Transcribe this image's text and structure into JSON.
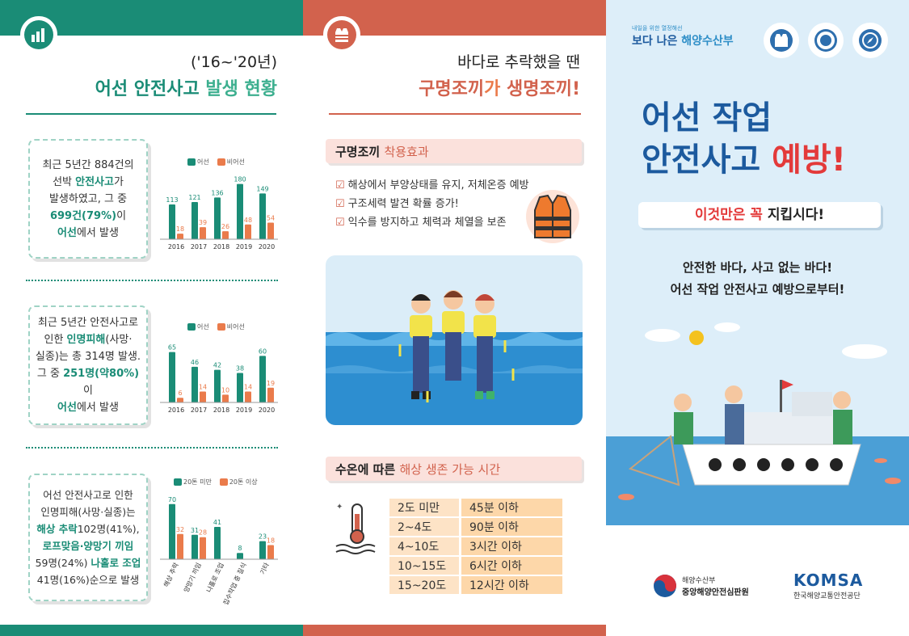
{
  "panel1": {
    "subtitle": "('16~'20년)",
    "title_a": "어선 안전사고 ",
    "title_b": "발생 현황",
    "b1": {
      "l1": "최근 5년간 884건의",
      "l2a": "선박 ",
      "l2b": "안전사고",
      "l2c": "가",
      "l3": "발생하였고, 그 중",
      "l4a": "699건(79%)",
      "l4b": "이",
      "l5a": "어선",
      "l5b": "에서 발생"
    },
    "b2": {
      "l1": "최근 5년간 안전사고로",
      "l2a": "인한 ",
      "l2b": "인명피해",
      "l2c": "(사망·",
      "l3": "실종)는 총 314명 발생.",
      "l4a": "그 중 ",
      "l4b": "251명(약80%)",
      "l4c": "이",
      "l5a": "어선",
      "l5b": "에서 발생"
    },
    "b3": {
      "l1": "어선 안전사고로 인한",
      "l2": "인명피해(사망·실종)는",
      "l3a": "해상 추락",
      "l3b": "102명(41%),",
      "l4": "로프맞음·양망기 끼임",
      "l5a": "59명(24%) ",
      "l5b": "나홀로 조업",
      "l6": "41명(16%)순으로 발생"
    }
  },
  "panel2": {
    "subtitle": "바다로 추락했을 땐",
    "title_a": "구명조끼",
    "title_b": "가 ",
    "title_c": "생명조끼!",
    "tag1_a": "구명조끼 ",
    "tag1_b": "착용효과",
    "checks": [
      "해상에서 부양상태를 유지, 저체온증 예방",
      "구조세력 발견 확률 증가!",
      "익수를 방지하고 체력과 체열을 보존"
    ],
    "tag2_a": "수온에 따른 ",
    "tag2_b": "해상 생존 가능 시간",
    "survival": [
      {
        "temp": "2도 미만",
        "time": "45분 이하"
      },
      {
        "temp": "2~4도",
        "time": "90분 이하"
      },
      {
        "temp": "4~10도",
        "time": "3시간 이하"
      },
      {
        "temp": "10~15도",
        "time": "6시간 이하"
      },
      {
        "temp": "15~20도",
        "time": "12시간 이하"
      }
    ]
  },
  "panel3": {
    "logo_small": "내일을 위한 열정해선",
    "logo_a": "보다 나은 ",
    "logo_b": "해양수산부",
    "h1_l1": "어선 작업",
    "h1_l2a": "안전사고 ",
    "h1_l2b": "예방!",
    "pill_a": "이것만은 꼭 ",
    "pill_b": "지킵시다!",
    "tag_l1": "안전한 바다, 사고 없는 바다!",
    "tag_l2": "어선 작업 안전사고 예방으로부터!",
    "org1_top": "해양수산부",
    "org1_bottom": "중앙해양안전심판원",
    "komsa": "KOMSA",
    "komsa_sub": "한국해양교통안전공단"
  },
  "chart_data": [
    {
      "type": "bar",
      "legend": [
        "어선",
        "비어선"
      ],
      "categories": [
        "2016",
        "2017",
        "2018",
        "2019",
        "2020"
      ],
      "series": [
        {
          "name": "어선",
          "values": [
            113,
            121,
            136,
            180,
            149
          ]
        },
        {
          "name": "비어선",
          "values": [
            18,
            39,
            26,
            48,
            54
          ]
        }
      ],
      "ylim": [
        0,
        200
      ]
    },
    {
      "type": "bar",
      "legend": [
        "어선",
        "비어선"
      ],
      "categories": [
        "2016",
        "2017",
        "2018",
        "2019",
        "2020"
      ],
      "series": [
        {
          "name": "어선",
          "values": [
            65,
            46,
            42,
            38,
            60
          ]
        },
        {
          "name": "비어선",
          "values": [
            6,
            14,
            10,
            14,
            19
          ]
        }
      ],
      "ylim": [
        0,
        75
      ]
    },
    {
      "type": "bar",
      "legend": [
        "20톤 미만",
        "20톤 이상"
      ],
      "categories": [
        "해상 추락",
        "양망기 끼임",
        "나홀로 조업",
        "집수작업 중 질식",
        "기타"
      ],
      "series": [
        {
          "name": "20톤 미만",
          "values": [
            70,
            31,
            41,
            8,
            23
          ]
        },
        {
          "name": "20톤 이상",
          "values": [
            32,
            28,
            0,
            0,
            18
          ]
        }
      ],
      "value_labels": [
        [
          "70",
          "31",
          "41",
          "8",
          "23"
        ],
        [
          "32",
          "28",
          "",
          "",
          "18"
        ]
      ],
      "ylim": [
        0,
        80
      ]
    }
  ],
  "colors": {
    "teal": "#1a8c76",
    "coral": "#d2624d",
    "orange": "#ea7b4b",
    "navy": "#1c5a9e",
    "red": "#e33a3a"
  }
}
